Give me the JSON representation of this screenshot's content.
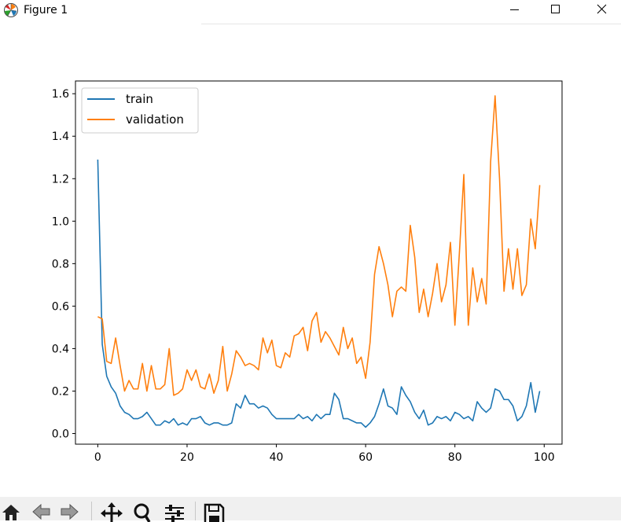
{
  "window": {
    "title": "Figure 1",
    "controls": [
      "minimize",
      "maximize",
      "close"
    ]
  },
  "toolbar": {
    "icons": [
      "home-icon",
      "back-icon",
      "forward-icon",
      "pan-icon",
      "zoom-icon",
      "configure-subplots-icon",
      "save-icon"
    ]
  },
  "chart_data": {
    "type": "line",
    "title": "",
    "xlabel": "",
    "ylabel": "",
    "xlim": [
      -5,
      104
    ],
    "ylim": [
      -0.05,
      1.66
    ],
    "xticks": [
      0,
      20,
      40,
      60,
      80,
      100
    ],
    "xtick_labels": [
      "0",
      "20",
      "40",
      "60",
      "80",
      "100"
    ],
    "yticks": [
      0.0,
      0.2,
      0.4,
      0.6,
      0.8,
      1.0,
      1.2,
      1.4,
      1.6
    ],
    "ytick_labels": [
      "0.0",
      "0.2",
      "0.4",
      "0.6",
      "0.8",
      "1.0",
      "1.2",
      "1.4",
      "1.6"
    ],
    "grid": false,
    "legend_position": "top-left",
    "x": [
      0,
      1,
      2,
      3,
      4,
      5,
      6,
      7,
      8,
      9,
      10,
      11,
      12,
      13,
      14,
      15,
      16,
      17,
      18,
      19,
      20,
      21,
      22,
      23,
      24,
      25,
      26,
      27,
      28,
      29,
      30,
      31,
      32,
      33,
      34,
      35,
      36,
      37,
      38,
      39,
      40,
      41,
      42,
      43,
      44,
      45,
      46,
      47,
      48,
      49,
      50,
      51,
      52,
      53,
      54,
      55,
      56,
      57,
      58,
      59,
      60,
      61,
      62,
      63,
      64,
      65,
      66,
      67,
      68,
      69,
      70,
      71,
      72,
      73,
      74,
      75,
      76,
      77,
      78,
      79,
      80,
      81,
      82,
      83,
      84,
      85,
      86,
      87,
      88,
      89,
      90,
      91,
      92,
      93,
      94,
      95,
      96,
      97,
      98,
      99
    ],
    "series": [
      {
        "name": "train",
        "color": "#1f77b4",
        "values": [
          1.29,
          0.42,
          0.27,
          0.22,
          0.19,
          0.13,
          0.1,
          0.09,
          0.07,
          0.07,
          0.08,
          0.1,
          0.07,
          0.04,
          0.04,
          0.06,
          0.05,
          0.07,
          0.04,
          0.05,
          0.04,
          0.07,
          0.07,
          0.08,
          0.05,
          0.04,
          0.05,
          0.05,
          0.04,
          0.04,
          0.05,
          0.14,
          0.12,
          0.18,
          0.14,
          0.14,
          0.12,
          0.13,
          0.12,
          0.09,
          0.07,
          0.07,
          0.07,
          0.07,
          0.07,
          0.09,
          0.07,
          0.08,
          0.06,
          0.09,
          0.07,
          0.09,
          0.09,
          0.19,
          0.16,
          0.07,
          0.07,
          0.06,
          0.05,
          0.05,
          0.03,
          0.05,
          0.08,
          0.14,
          0.21,
          0.13,
          0.12,
          0.09,
          0.22,
          0.18,
          0.15,
          0.1,
          0.07,
          0.11,
          0.04,
          0.05,
          0.08,
          0.07,
          0.08,
          0.06,
          0.1,
          0.09,
          0.07,
          0.08,
          0.06,
          0.15,
          0.12,
          0.1,
          0.12,
          0.21,
          0.2,
          0.16,
          0.16,
          0.13,
          0.06,
          0.08,
          0.13,
          0.24,
          0.1,
          0.2
        ]
      },
      {
        "name": "validation",
        "color": "#ff7f0e",
        "values": [
          0.55,
          0.54,
          0.34,
          0.33,
          0.45,
          0.32,
          0.2,
          0.25,
          0.21,
          0.21,
          0.33,
          0.2,
          0.32,
          0.21,
          0.21,
          0.23,
          0.4,
          0.18,
          0.19,
          0.21,
          0.3,
          0.25,
          0.3,
          0.22,
          0.21,
          0.28,
          0.19,
          0.25,
          0.41,
          0.2,
          0.28,
          0.39,
          0.36,
          0.32,
          0.33,
          0.32,
          0.3,
          0.45,
          0.38,
          0.44,
          0.32,
          0.31,
          0.38,
          0.36,
          0.46,
          0.47,
          0.5,
          0.39,
          0.53,
          0.57,
          0.43,
          0.48,
          0.45,
          0.41,
          0.37,
          0.5,
          0.4,
          0.45,
          0.33,
          0.36,
          0.26,
          0.43,
          0.75,
          0.88,
          0.8,
          0.7,
          0.55,
          0.67,
          0.69,
          0.67,
          0.98,
          0.83,
          0.57,
          0.68,
          0.55,
          0.66,
          0.8,
          0.62,
          0.7,
          0.9,
          0.51,
          0.85,
          1.22,
          0.51,
          0.78,
          0.62,
          0.73,
          0.61,
          1.28,
          1.59,
          1.2,
          0.67,
          0.87,
          0.68,
          0.87,
          0.65,
          0.7,
          1.01,
          0.87,
          1.17
        ]
      }
    ]
  }
}
